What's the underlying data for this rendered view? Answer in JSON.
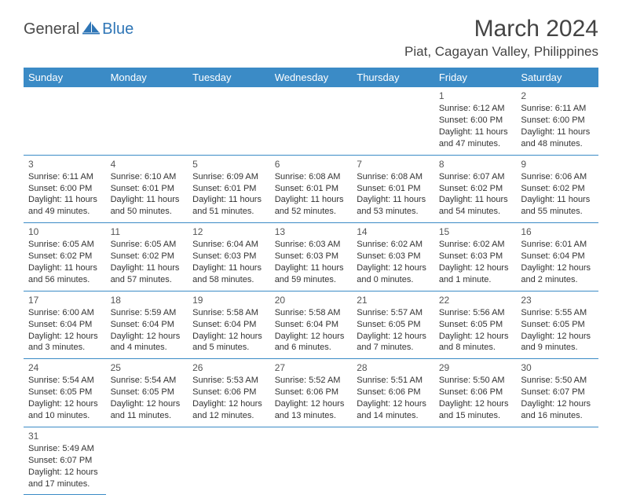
{
  "logo": {
    "text1": "General",
    "text2": "Blue",
    "text1_color": "#4a4a4a",
    "text2_color": "#2e75b6",
    "icon_color": "#2e75b6"
  },
  "title": "March 2024",
  "location": "Piat, Cagayan Valley, Philippines",
  "colors": {
    "header_bg": "#3b8bc6",
    "header_text": "#ffffff",
    "border": "#3b8bc6",
    "body_text": "#333333",
    "title_text": "#444444",
    "background": "#ffffff"
  },
  "typography": {
    "title_fontsize": 30,
    "location_fontsize": 17,
    "header_fontsize": 13,
    "cell_fontsize": 11,
    "daynum_fontsize": 12
  },
  "layout": {
    "columns": 7,
    "rows": 6,
    "first_day_column": 5,
    "days_in_month": 31
  },
  "day_headers": [
    "Sunday",
    "Monday",
    "Tuesday",
    "Wednesday",
    "Thursday",
    "Friday",
    "Saturday"
  ],
  "days": [
    {
      "n": 1,
      "sunrise": "6:12 AM",
      "sunset": "6:00 PM",
      "daylight": "11 hours and 47 minutes."
    },
    {
      "n": 2,
      "sunrise": "6:11 AM",
      "sunset": "6:00 PM",
      "daylight": "11 hours and 48 minutes."
    },
    {
      "n": 3,
      "sunrise": "6:11 AM",
      "sunset": "6:00 PM",
      "daylight": "11 hours and 49 minutes."
    },
    {
      "n": 4,
      "sunrise": "6:10 AM",
      "sunset": "6:01 PM",
      "daylight": "11 hours and 50 minutes."
    },
    {
      "n": 5,
      "sunrise": "6:09 AM",
      "sunset": "6:01 PM",
      "daylight": "11 hours and 51 minutes."
    },
    {
      "n": 6,
      "sunrise": "6:08 AM",
      "sunset": "6:01 PM",
      "daylight": "11 hours and 52 minutes."
    },
    {
      "n": 7,
      "sunrise": "6:08 AM",
      "sunset": "6:01 PM",
      "daylight": "11 hours and 53 minutes."
    },
    {
      "n": 8,
      "sunrise": "6:07 AM",
      "sunset": "6:02 PM",
      "daylight": "11 hours and 54 minutes."
    },
    {
      "n": 9,
      "sunrise": "6:06 AM",
      "sunset": "6:02 PM",
      "daylight": "11 hours and 55 minutes."
    },
    {
      "n": 10,
      "sunrise": "6:05 AM",
      "sunset": "6:02 PM",
      "daylight": "11 hours and 56 minutes."
    },
    {
      "n": 11,
      "sunrise": "6:05 AM",
      "sunset": "6:02 PM",
      "daylight": "11 hours and 57 minutes."
    },
    {
      "n": 12,
      "sunrise": "6:04 AM",
      "sunset": "6:03 PM",
      "daylight": "11 hours and 58 minutes."
    },
    {
      "n": 13,
      "sunrise": "6:03 AM",
      "sunset": "6:03 PM",
      "daylight": "11 hours and 59 minutes."
    },
    {
      "n": 14,
      "sunrise": "6:02 AM",
      "sunset": "6:03 PM",
      "daylight": "12 hours and 0 minutes."
    },
    {
      "n": 15,
      "sunrise": "6:02 AM",
      "sunset": "6:03 PM",
      "daylight": "12 hours and 1 minute."
    },
    {
      "n": 16,
      "sunrise": "6:01 AM",
      "sunset": "6:04 PM",
      "daylight": "12 hours and 2 minutes."
    },
    {
      "n": 17,
      "sunrise": "6:00 AM",
      "sunset": "6:04 PM",
      "daylight": "12 hours and 3 minutes."
    },
    {
      "n": 18,
      "sunrise": "5:59 AM",
      "sunset": "6:04 PM",
      "daylight": "12 hours and 4 minutes."
    },
    {
      "n": 19,
      "sunrise": "5:58 AM",
      "sunset": "6:04 PM",
      "daylight": "12 hours and 5 minutes."
    },
    {
      "n": 20,
      "sunrise": "5:58 AM",
      "sunset": "6:04 PM",
      "daylight": "12 hours and 6 minutes."
    },
    {
      "n": 21,
      "sunrise": "5:57 AM",
      "sunset": "6:05 PM",
      "daylight": "12 hours and 7 minutes."
    },
    {
      "n": 22,
      "sunrise": "5:56 AM",
      "sunset": "6:05 PM",
      "daylight": "12 hours and 8 minutes."
    },
    {
      "n": 23,
      "sunrise": "5:55 AM",
      "sunset": "6:05 PM",
      "daylight": "12 hours and 9 minutes."
    },
    {
      "n": 24,
      "sunrise": "5:54 AM",
      "sunset": "6:05 PM",
      "daylight": "12 hours and 10 minutes."
    },
    {
      "n": 25,
      "sunrise": "5:54 AM",
      "sunset": "6:05 PM",
      "daylight": "12 hours and 11 minutes."
    },
    {
      "n": 26,
      "sunrise": "5:53 AM",
      "sunset": "6:06 PM",
      "daylight": "12 hours and 12 minutes."
    },
    {
      "n": 27,
      "sunrise": "5:52 AM",
      "sunset": "6:06 PM",
      "daylight": "12 hours and 13 minutes."
    },
    {
      "n": 28,
      "sunrise": "5:51 AM",
      "sunset": "6:06 PM",
      "daylight": "12 hours and 14 minutes."
    },
    {
      "n": 29,
      "sunrise": "5:50 AM",
      "sunset": "6:06 PM",
      "daylight": "12 hours and 15 minutes."
    },
    {
      "n": 30,
      "sunrise": "5:50 AM",
      "sunset": "6:07 PM",
      "daylight": "12 hours and 16 minutes."
    },
    {
      "n": 31,
      "sunrise": "5:49 AM",
      "sunset": "6:07 PM",
      "daylight": "12 hours and 17 minutes."
    }
  ],
  "labels": {
    "sunrise_prefix": "Sunrise: ",
    "sunset_prefix": "Sunset: ",
    "daylight_prefix": "Daylight: "
  }
}
